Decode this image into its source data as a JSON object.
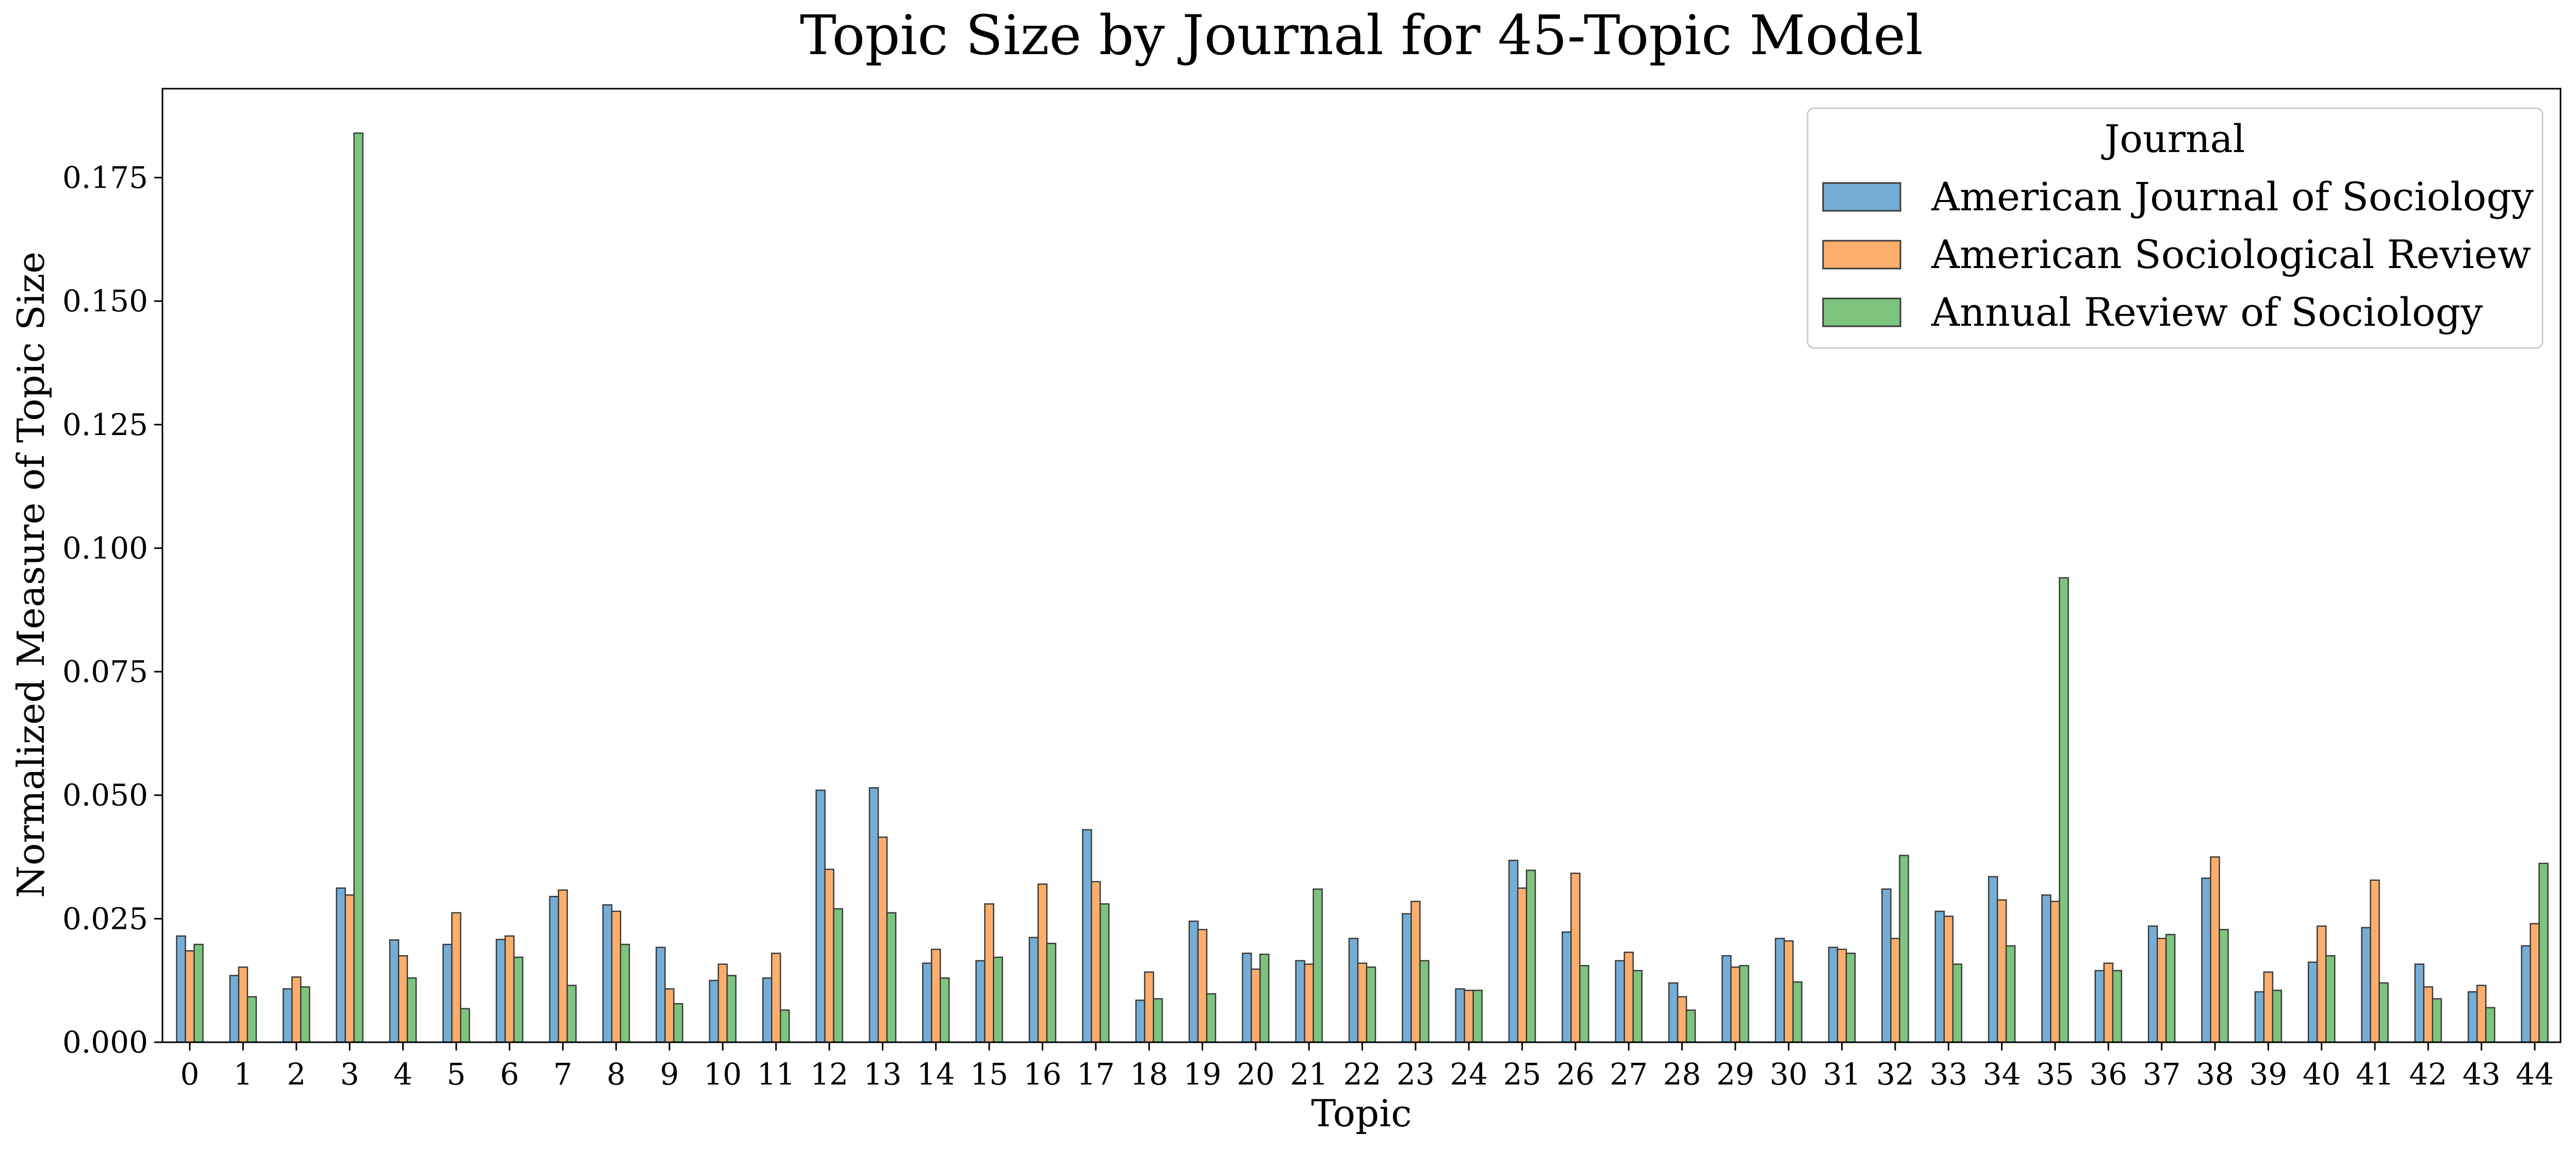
{
  "chart_data": {
    "type": "bar",
    "title": "Topic Size by Journal for 45-Topic Model",
    "xlabel": "Topic",
    "ylabel": "Normalized Measure of Topic Size",
    "ylim": [
      0,
      0.193
    ],
    "yticks": [
      "0.000",
      "0.025",
      "0.050",
      "0.075",
      "0.100",
      "0.125",
      "0.150",
      "0.175"
    ],
    "ytick_values": [
      0,
      0.025,
      0.05,
      0.075,
      0.1,
      0.125,
      0.15,
      0.175
    ],
    "categories": [
      "0",
      "1",
      "2",
      "3",
      "4",
      "5",
      "6",
      "7",
      "8",
      "9",
      "10",
      "11",
      "12",
      "13",
      "14",
      "15",
      "16",
      "17",
      "18",
      "19",
      "20",
      "21",
      "22",
      "23",
      "24",
      "25",
      "26",
      "27",
      "28",
      "29",
      "30",
      "31",
      "32",
      "33",
      "34",
      "35",
      "36",
      "37",
      "38",
      "39",
      "40",
      "41",
      "42",
      "43",
      "44"
    ],
    "grid": false,
    "legend": {
      "title": "Journal",
      "placement": "top-right"
    },
    "series": [
      {
        "name": "American Journal of Sociology",
        "color": "#74AED6",
        "values": [
          0.0215,
          0.0135,
          0.0108,
          0.0312,
          0.0207,
          0.0198,
          0.0208,
          0.0295,
          0.0278,
          0.0192,
          0.0125,
          0.013,
          0.051,
          0.0515,
          0.016,
          0.0165,
          0.0212,
          0.043,
          0.0085,
          0.0245,
          0.018,
          0.0165,
          0.021,
          0.026,
          0.0108,
          0.0368,
          0.0223,
          0.0165,
          0.012,
          0.0175,
          0.021,
          0.0192,
          0.031,
          0.0265,
          0.0335,
          0.0298,
          0.0145,
          0.0235,
          0.0332,
          0.0102,
          0.0162,
          0.0232,
          0.0158,
          0.0102,
          0.0195
        ]
      },
      {
        "name": "American Sociological Review",
        "color": "#FDAE6B",
        "values": [
          0.0185,
          0.0152,
          0.0132,
          0.0298,
          0.0175,
          0.0262,
          0.0215,
          0.0308,
          0.0265,
          0.0108,
          0.0158,
          0.018,
          0.035,
          0.0415,
          0.0188,
          0.028,
          0.032,
          0.0325,
          0.0142,
          0.0228,
          0.0148,
          0.0158,
          0.016,
          0.0285,
          0.0105,
          0.0312,
          0.0342,
          0.0182,
          0.0092,
          0.0152,
          0.0205,
          0.0188,
          0.021,
          0.0255,
          0.0288,
          0.0285,
          0.016,
          0.021,
          0.0375,
          0.0142,
          0.0235,
          0.0328,
          0.0112,
          0.0115,
          0.024
        ]
      },
      {
        "name": "Annual Review of Sociology",
        "color": "#7DC57E",
        "values": [
          0.0198,
          0.0092,
          0.0112,
          0.184,
          0.013,
          0.0068,
          0.0172,
          0.0115,
          0.0198,
          0.0078,
          0.0135,
          0.0065,
          0.027,
          0.0262,
          0.013,
          0.0172,
          0.02,
          0.028,
          0.0088,
          0.0098,
          0.0178,
          0.031,
          0.0152,
          0.0165,
          0.0105,
          0.0348,
          0.0155,
          0.0145,
          0.0065,
          0.0155,
          0.0122,
          0.018,
          0.0378,
          0.0158,
          0.0195,
          0.094,
          0.0145,
          0.0218,
          0.0228,
          0.0105,
          0.0175,
          0.012,
          0.0088,
          0.007,
          0.0362
        ]
      }
    ]
  }
}
